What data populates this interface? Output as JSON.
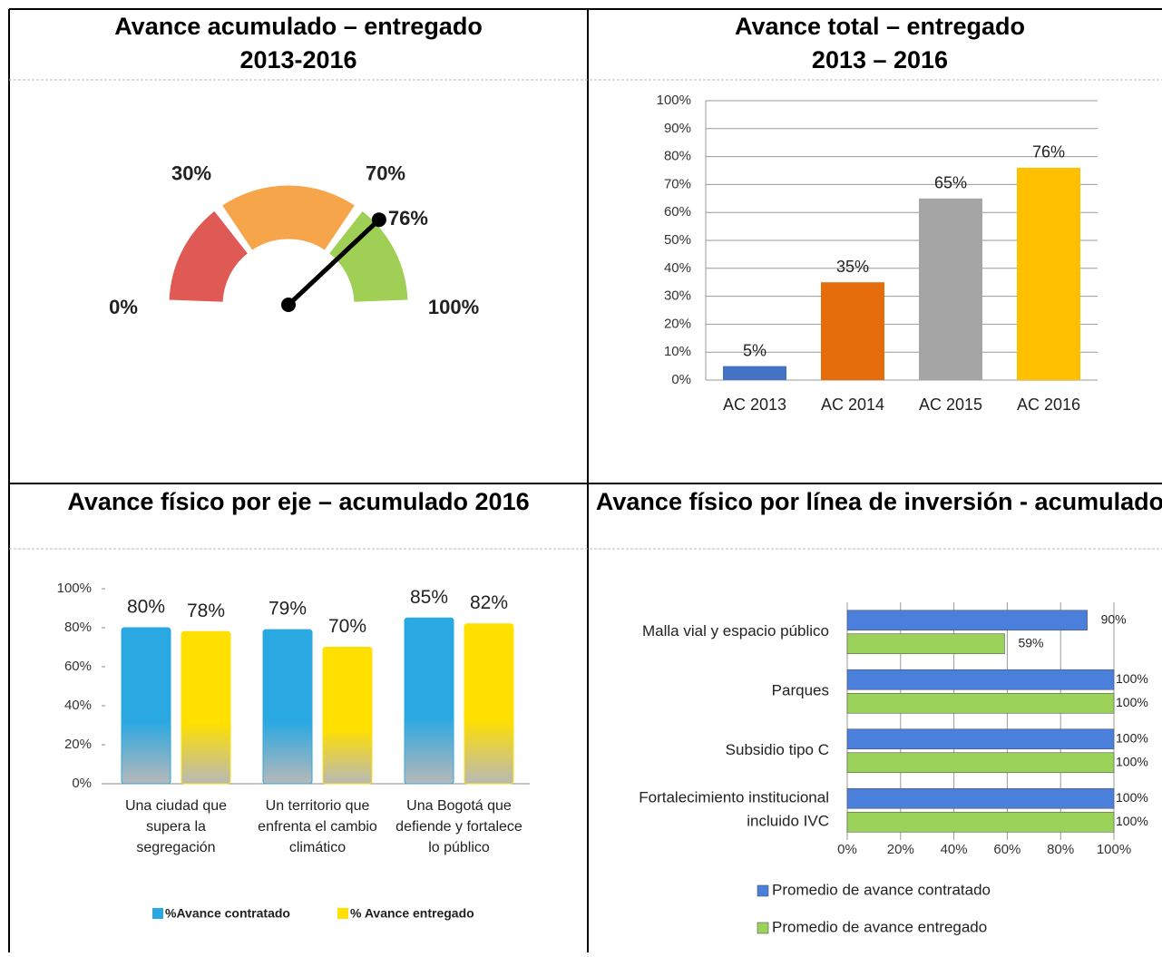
{
  "chart_data": [
    {
      "type": "gauge",
      "title": "Avance acumulado – entregado",
      "subtitle": "2013-2016",
      "lim": [
        0,
        100
      ],
      "ticks": [
        {
          "value": 0,
          "label": "0%"
        },
        {
          "value": 30,
          "label": "30%"
        },
        {
          "value": 70,
          "label": "70%"
        },
        {
          "value": 100,
          "label": "100%"
        }
      ],
      "band_colors": [
        "#e05a55",
        "#f7a54a",
        "#9fcf55"
      ],
      "values": [
        76
      ],
      "value_labels": [
        "76%"
      ],
      "value_color": "#2bb0e0"
    },
    {
      "type": "bar",
      "title": "Avance total – entregado",
      "subtitle": "2013 – 2016",
      "categories": [
        "AC 2013",
        "AC 2014",
        "AC 2015",
        "AC 2016"
      ],
      "values": [
        5,
        35,
        65,
        76
      ],
      "value_labels": [
        "5%",
        "35%",
        "65%",
        "76%"
      ],
      "colors": [
        "#4472c4",
        "#e46c0a",
        "#a5a5a5",
        "#ffc000"
      ],
      "ylim": [
        0,
        100
      ],
      "yticks": [
        {
          "value": 0,
          "label": "0%"
        },
        {
          "value": 10,
          "label": "10%"
        },
        {
          "value": 20,
          "label": "20%"
        },
        {
          "value": 30,
          "label": "30%"
        },
        {
          "value": 40,
          "label": "40%"
        },
        {
          "value": 50,
          "label": "50%"
        },
        {
          "value": 60,
          "label": "60%"
        },
        {
          "value": 70,
          "label": "70%"
        },
        {
          "value": 80,
          "label": "80%"
        },
        {
          "value": 90,
          "label": "90%"
        },
        {
          "value": 100,
          "label": "100%"
        }
      ],
      "grid": true
    },
    {
      "type": "grouped_bar",
      "title": "Avance físico por eje – acumulado 2016",
      "categories": [
        "Una ciudad que supera la segregación",
        "Un territorio que enfrenta el cambio climático",
        "Una Bogotá que defiende y fortalece lo público"
      ],
      "series": [
        {
          "name": "%Avance contratado",
          "color": "#2aa8e2",
          "values": [
            80,
            79,
            85
          ],
          "value_labels": [
            "80%",
            "79%",
            "85%"
          ]
        },
        {
          "name": "% Avance entregado",
          "color": "#ffe000",
          "values": [
            78,
            70,
            82
          ],
          "value_labels": [
            "78%",
            "70%",
            "82%"
          ]
        }
      ],
      "ylim": [
        0,
        100
      ],
      "yticks": [
        {
          "value": 0,
          "label": "0%"
        },
        {
          "value": 20,
          "label": "20%"
        },
        {
          "value": 40,
          "label": "40%"
        },
        {
          "value": 60,
          "label": "60%"
        },
        {
          "value": 80,
          "label": "80%"
        },
        {
          "value": 100,
          "label": "100%"
        }
      ]
    },
    {
      "type": "hbar",
      "title": "Avance físico por línea de inversión - acumulado",
      "categories": [
        "Malla vial y espacio público",
        "Parques",
        "Subsidio tipo C",
        "Fortalecimiento institucional incluido IVC"
      ],
      "series": [
        {
          "name": "Promedio de avance contratado",
          "color": "#4a7fdc",
          "values": [
            90,
            100,
            100,
            100
          ],
          "value_labels": [
            "90%",
            "100%",
            "100%",
            "100%"
          ]
        },
        {
          "name": "Promedio de avance entregado",
          "color": "#9bd35a",
          "values": [
            59,
            100,
            100,
            100
          ],
          "value_labels": [
            "59%",
            "100%",
            "100%",
            "100%"
          ]
        }
      ],
      "xlim": [
        0,
        100
      ],
      "xticks": [
        {
          "value": 0,
          "label": "0%"
        },
        {
          "value": 20,
          "label": "20%"
        },
        {
          "value": 40,
          "label": "40%"
        },
        {
          "value": 60,
          "label": "60%"
        },
        {
          "value": 80,
          "label": "80%"
        },
        {
          "value": 100,
          "label": "100%"
        }
      ],
      "grid": true
    }
  ]
}
